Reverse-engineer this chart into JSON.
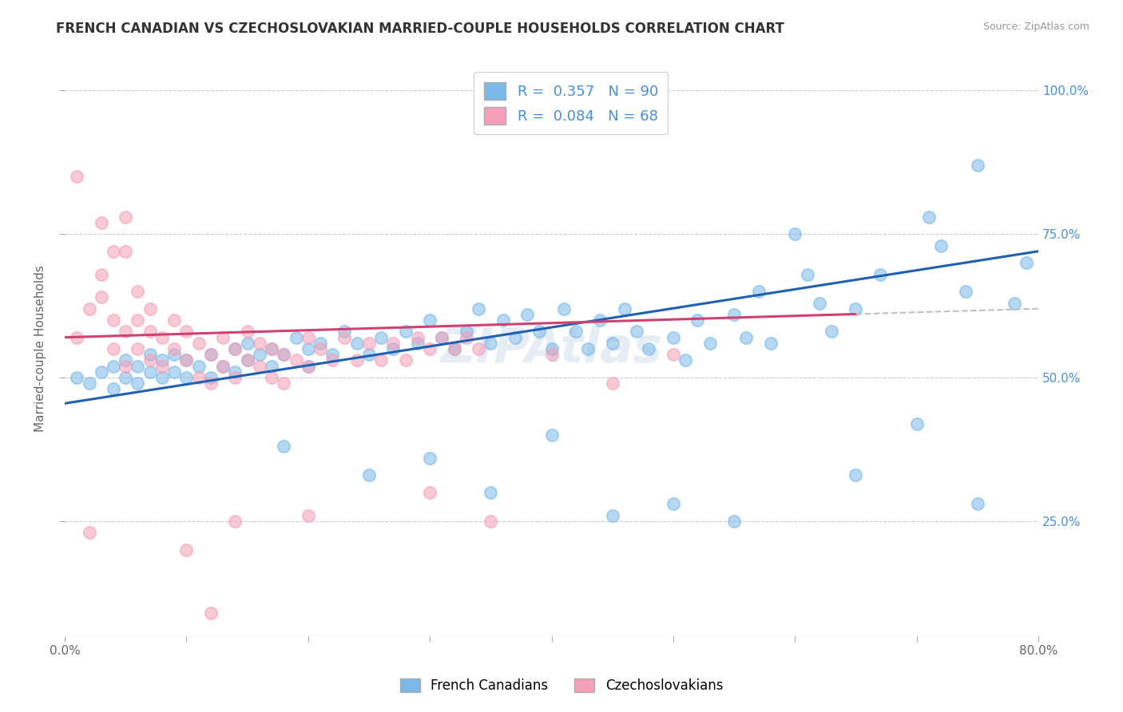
{
  "title": "FRENCH CANADIAN VS CZECHOSLOVAKIAN MARRIED-COUPLE HOUSEHOLDS CORRELATION CHART",
  "source": "Source: ZipAtlas.com",
  "ylabel": "Married-couple Households",
  "yticks": [
    "25.0%",
    "50.0%",
    "75.0%",
    "100.0%"
  ],
  "ytick_values": [
    0.25,
    0.5,
    0.75,
    1.0
  ],
  "xlim": [
    0.0,
    0.8
  ],
  "ylim": [
    0.05,
    1.05
  ],
  "legend_labels": [
    "French Canadians",
    "Czechoslovakians"
  ],
  "blue_color": "#7bb8e8",
  "pink_color": "#f4a0b8",
  "trend_blue": "#2060b0",
  "trend_pink": "#d04070",
  "trend_gray": "#c0c0c0",
  "watermark": "ZIPAtlas",
  "blue_R": 0.357,
  "pink_R": 0.084,
  "blue_N": 90,
  "pink_N": 68,
  "blue_trend_start": 0.455,
  "blue_trend_end": 0.72,
  "pink_trend_start": 0.57,
  "pink_trend_end": 0.62,
  "blue_points": [
    [
      0.01,
      0.5
    ],
    [
      0.02,
      0.49
    ],
    [
      0.03,
      0.51
    ],
    [
      0.04,
      0.48
    ],
    [
      0.04,
      0.52
    ],
    [
      0.05,
      0.5
    ],
    [
      0.05,
      0.53
    ],
    [
      0.06,
      0.49
    ],
    [
      0.06,
      0.52
    ],
    [
      0.07,
      0.51
    ],
    [
      0.07,
      0.54
    ],
    [
      0.08,
      0.5
    ],
    [
      0.08,
      0.53
    ],
    [
      0.09,
      0.51
    ],
    [
      0.09,
      0.54
    ],
    [
      0.1,
      0.5
    ],
    [
      0.1,
      0.53
    ],
    [
      0.11,
      0.52
    ],
    [
      0.12,
      0.5
    ],
    [
      0.12,
      0.54
    ],
    [
      0.13,
      0.52
    ],
    [
      0.14,
      0.55
    ],
    [
      0.14,
      0.51
    ],
    [
      0.15,
      0.53
    ],
    [
      0.15,
      0.56
    ],
    [
      0.16,
      0.54
    ],
    [
      0.17,
      0.52
    ],
    [
      0.17,
      0.55
    ],
    [
      0.18,
      0.54
    ],
    [
      0.19,
      0.57
    ],
    [
      0.2,
      0.55
    ],
    [
      0.2,
      0.52
    ],
    [
      0.21,
      0.56
    ],
    [
      0.22,
      0.54
    ],
    [
      0.23,
      0.58
    ],
    [
      0.24,
      0.56
    ],
    [
      0.25,
      0.54
    ],
    [
      0.26,
      0.57
    ],
    [
      0.27,
      0.55
    ],
    [
      0.28,
      0.58
    ],
    [
      0.29,
      0.56
    ],
    [
      0.3,
      0.6
    ],
    [
      0.31,
      0.57
    ],
    [
      0.32,
      0.55
    ],
    [
      0.33,
      0.58
    ],
    [
      0.34,
      0.62
    ],
    [
      0.35,
      0.56
    ],
    [
      0.36,
      0.6
    ],
    [
      0.37,
      0.57
    ],
    [
      0.38,
      0.61
    ],
    [
      0.39,
      0.58
    ],
    [
      0.4,
      0.55
    ],
    [
      0.41,
      0.62
    ],
    [
      0.42,
      0.58
    ],
    [
      0.43,
      0.55
    ],
    [
      0.44,
      0.6
    ],
    [
      0.45,
      0.56
    ],
    [
      0.46,
      0.62
    ],
    [
      0.47,
      0.58
    ],
    [
      0.48,
      0.55
    ],
    [
      0.5,
      0.57
    ],
    [
      0.51,
      0.53
    ],
    [
      0.52,
      0.6
    ],
    [
      0.53,
      0.56
    ],
    [
      0.55,
      0.61
    ],
    [
      0.56,
      0.57
    ],
    [
      0.57,
      0.65
    ],
    [
      0.58,
      0.56
    ],
    [
      0.6,
      0.75
    ],
    [
      0.61,
      0.68
    ],
    [
      0.62,
      0.63
    ],
    [
      0.63,
      0.58
    ],
    [
      0.65,
      0.62
    ],
    [
      0.67,
      0.68
    ],
    [
      0.7,
      0.42
    ],
    [
      0.71,
      0.78
    ],
    [
      0.72,
      0.73
    ],
    [
      0.74,
      0.65
    ],
    [
      0.75,
      0.87
    ],
    [
      0.78,
      0.63
    ],
    [
      0.79,
      0.7
    ],
    [
      0.18,
      0.38
    ],
    [
      0.25,
      0.33
    ],
    [
      0.3,
      0.36
    ],
    [
      0.35,
      0.3
    ],
    [
      0.4,
      0.4
    ],
    [
      0.45,
      0.26
    ],
    [
      0.5,
      0.28
    ],
    [
      0.55,
      0.25
    ],
    [
      0.65,
      0.33
    ],
    [
      0.75,
      0.28
    ]
  ],
  "pink_points": [
    [
      0.01,
      0.57
    ],
    [
      0.02,
      0.62
    ],
    [
      0.03,
      0.68
    ],
    [
      0.03,
      0.64
    ],
    [
      0.04,
      0.6
    ],
    [
      0.04,
      0.55
    ],
    [
      0.05,
      0.72
    ],
    [
      0.05,
      0.58
    ],
    [
      0.05,
      0.52
    ],
    [
      0.06,
      0.65
    ],
    [
      0.06,
      0.6
    ],
    [
      0.06,
      0.55
    ],
    [
      0.07,
      0.58
    ],
    [
      0.07,
      0.53
    ],
    [
      0.07,
      0.62
    ],
    [
      0.08,
      0.57
    ],
    [
      0.08,
      0.52
    ],
    [
      0.09,
      0.6
    ],
    [
      0.09,
      0.55
    ],
    [
      0.1,
      0.58
    ],
    [
      0.1,
      0.53
    ],
    [
      0.11,
      0.56
    ],
    [
      0.11,
      0.5
    ],
    [
      0.12,
      0.54
    ],
    [
      0.12,
      0.49
    ],
    [
      0.13,
      0.57
    ],
    [
      0.13,
      0.52
    ],
    [
      0.14,
      0.55
    ],
    [
      0.14,
      0.5
    ],
    [
      0.15,
      0.58
    ],
    [
      0.15,
      0.53
    ],
    [
      0.16,
      0.56
    ],
    [
      0.16,
      0.52
    ],
    [
      0.17,
      0.55
    ],
    [
      0.17,
      0.5
    ],
    [
      0.18,
      0.54
    ],
    [
      0.18,
      0.49
    ],
    [
      0.19,
      0.53
    ],
    [
      0.2,
      0.57
    ],
    [
      0.2,
      0.52
    ],
    [
      0.21,
      0.55
    ],
    [
      0.22,
      0.53
    ],
    [
      0.23,
      0.57
    ],
    [
      0.24,
      0.53
    ],
    [
      0.25,
      0.56
    ],
    [
      0.26,
      0.53
    ],
    [
      0.27,
      0.56
    ],
    [
      0.28,
      0.53
    ],
    [
      0.29,
      0.57
    ],
    [
      0.3,
      0.55
    ],
    [
      0.31,
      0.57
    ],
    [
      0.32,
      0.55
    ],
    [
      0.33,
      0.57
    ],
    [
      0.34,
      0.55
    ],
    [
      0.01,
      0.85
    ],
    [
      0.03,
      0.77
    ],
    [
      0.04,
      0.72
    ],
    [
      0.05,
      0.78
    ],
    [
      0.02,
      0.23
    ],
    [
      0.1,
      0.2
    ],
    [
      0.14,
      0.25
    ],
    [
      0.2,
      0.26
    ],
    [
      0.12,
      0.09
    ],
    [
      0.3,
      0.3
    ],
    [
      0.35,
      0.25
    ],
    [
      0.4,
      0.54
    ],
    [
      0.45,
      0.49
    ],
    [
      0.5,
      0.54
    ]
  ]
}
